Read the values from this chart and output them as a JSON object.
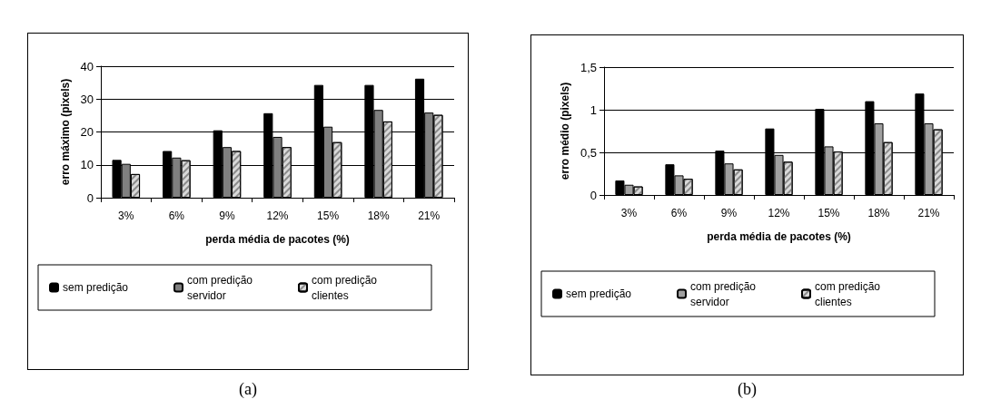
{
  "chart_data": [
    {
      "type": "bar",
      "categories": [
        "3%",
        "6%",
        "9%",
        "12%",
        "15%",
        "18%",
        "21%"
      ],
      "xlabel": "perda média de pacotes (%)",
      "ylabel": "erro máximo (pixels)",
      "ylim": [
        0,
        40
      ],
      "yticks": [
        0,
        10,
        20,
        30,
        40
      ],
      "grid": "y",
      "legend": "bottom",
      "annotations": [
        "(a)"
      ],
      "series": [
        {
          "name": "sem predição",
          "color": "#000000",
          "values": [
            11.5,
            14.2,
            20.5,
            25.7,
            34.3,
            34.3,
            36.2
          ]
        },
        {
          "name": "com predição servidor",
          "color": "#808080",
          "values": [
            10.3,
            12.2,
            15.4,
            18.5,
            21.6,
            26.7,
            25.9
          ]
        },
        {
          "name": "com predição clientes",
          "color": "#d9d9d9",
          "values": [
            7.2,
            11.4,
            14.2,
            15.4,
            16.9,
            23.2,
            25.2
          ]
        }
      ]
    },
    {
      "type": "bar",
      "categories": [
        "3%",
        "6%",
        "9%",
        "12%",
        "15%",
        "18%",
        "21%"
      ],
      "xlabel": "perda média de pacotes (%)",
      "ylabel": "erro médio (pixels)",
      "ylim": [
        0,
        1.5
      ],
      "yticks": [
        0,
        {
          "value": 0.5,
          "label": "0,5"
        },
        1,
        {
          "value": 1.5,
          "label": "1,5"
        }
      ],
      "grid": "y",
      "legend": "bottom",
      "annotations": [
        "(b)"
      ],
      "series": [
        {
          "name": "sem predição",
          "color": "#000000",
          "values": [
            0.17,
            0.36,
            0.52,
            0.78,
            1.01,
            1.1,
            1.19
          ]
        },
        {
          "name": "com predição servidor",
          "color": "#a0a0a0",
          "values": [
            0.12,
            0.23,
            0.37,
            0.47,
            0.57,
            0.84,
            0.84
          ]
        },
        {
          "name": "com predição clientes",
          "color": "#d9d9d9",
          "values": [
            0.1,
            0.19,
            0.3,
            0.39,
            0.51,
            0.62,
            0.77
          ]
        }
      ]
    }
  ]
}
